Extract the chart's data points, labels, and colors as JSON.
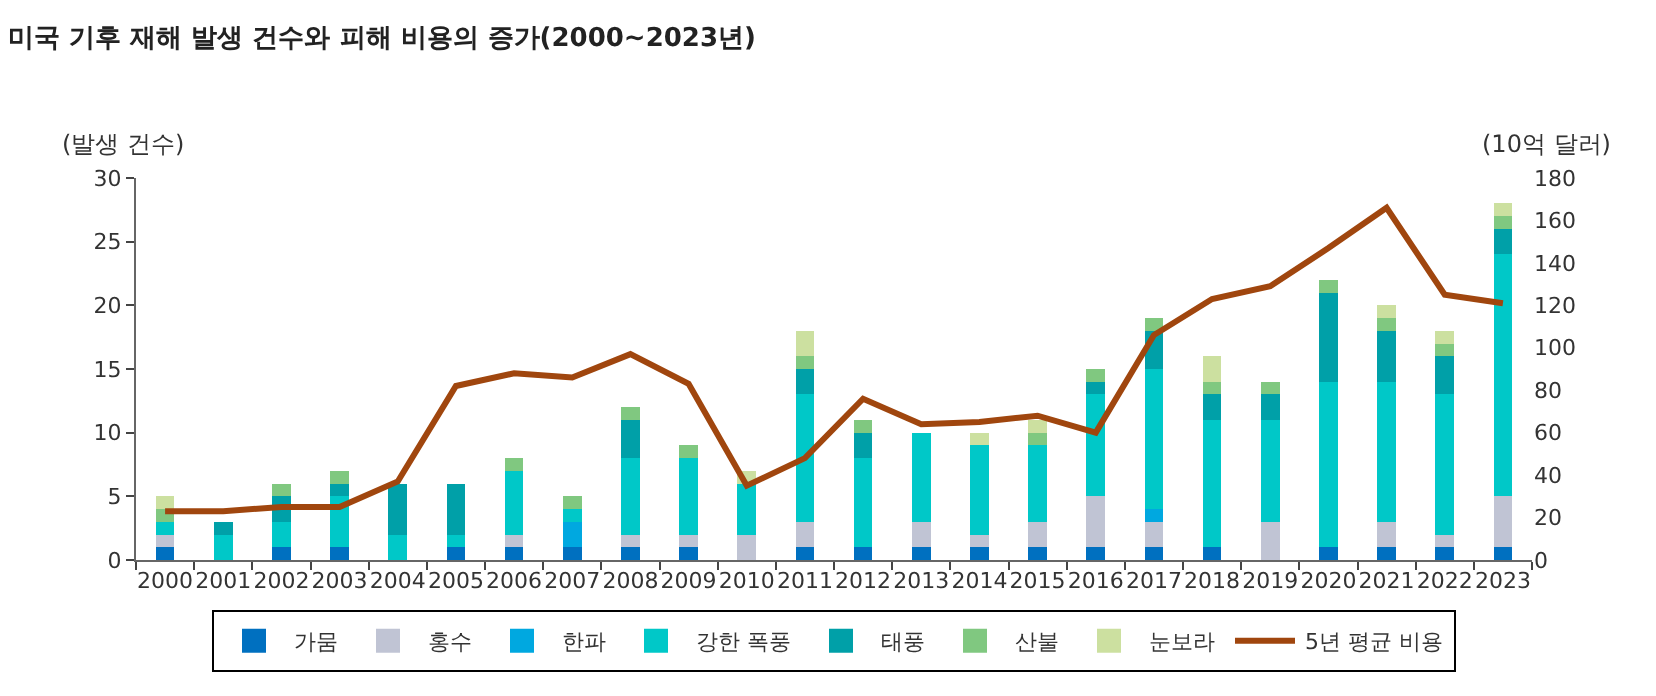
{
  "chart_data": {
    "type": "bar",
    "stacked": true,
    "title": "미국 기후 재해 발생 건수와 피해 비용의 증가(2000~2023년)",
    "ylabel": "(발생 건수)",
    "y2label": "(10억 달러)",
    "categories": [
      "2000",
      "2001",
      "2002",
      "2003",
      "2004",
      "2005",
      "2006",
      "2007",
      "2008",
      "2009",
      "2010",
      "2011",
      "2012",
      "2013",
      "2014",
      "2015",
      "2016",
      "2017",
      "2018",
      "2019",
      "2020",
      "2021",
      "2022",
      "2023"
    ],
    "ylim": [
      0,
      30
    ],
    "yticks": [
      0,
      5,
      10,
      15,
      20,
      25,
      30
    ],
    "y2lim": [
      0,
      180
    ],
    "y2ticks": [
      0,
      20,
      40,
      60,
      80,
      100,
      120,
      140,
      160,
      180
    ],
    "grid": false,
    "legend": "bottom",
    "series": [
      {
        "name": "가뭄",
        "color": "#0070c0",
        "values": [
          1,
          0,
          1,
          1,
          0,
          1,
          1,
          1,
          1,
          1,
          0,
          1,
          1,
          1,
          1,
          1,
          1,
          1,
          1,
          0,
          1,
          1,
          1,
          1
        ]
      },
      {
        "name": "홍수",
        "color": "#c0c4d4",
        "values": [
          1,
          0,
          0,
          0,
          0,
          0,
          1,
          0,
          1,
          1,
          2,
          2,
          0,
          2,
          1,
          2,
          4,
          2,
          0,
          3,
          0,
          2,
          1,
          4
        ]
      },
      {
        "name": "한파",
        "color": "#00a8e0",
        "values": [
          0,
          0,
          0,
          0,
          0,
          0,
          0,
          2,
          0,
          0,
          0,
          0,
          0,
          0,
          0,
          0,
          0,
          1,
          0,
          0,
          0,
          0,
          0,
          0
        ]
      },
      {
        "name": "강한 폭풍",
        "color": "#00c8c8",
        "values": [
          1,
          2,
          2,
          4,
          2,
          1,
          5,
          1,
          6,
          6,
          4,
          10,
          7,
          7,
          7,
          6,
          8,
          11,
          10,
          8,
          13,
          11,
          11,
          19
        ]
      },
      {
        "name": "태풍",
        "color": "#00a0a8",
        "values": [
          0,
          1,
          2,
          1,
          4,
          4,
          0,
          0,
          3,
          0,
          0,
          2,
          2,
          0,
          0,
          0,
          1,
          3,
          2,
          2,
          7,
          4,
          3,
          2
        ]
      },
      {
        "name": "산불",
        "color": "#80c880",
        "values": [
          1,
          0,
          1,
          1,
          0,
          0,
          1,
          1,
          1,
          1,
          0,
          1,
          1,
          0,
          0,
          1,
          1,
          1,
          1,
          1,
          1,
          1,
          1,
          1
        ]
      },
      {
        "name": "눈보라",
        "color": "#cce0a0",
        "values": [
          1,
          0,
          0,
          0,
          0,
          0,
          0,
          0,
          0,
          0,
          1,
          2,
          0,
          0,
          1,
          1,
          0,
          0,
          2,
          0,
          0,
          1,
          1,
          1
        ]
      },
      {
        "name": "5년 평균 비용",
        "type": "line",
        "axis": "y2",
        "color": "#a0460e",
        "marker": "none",
        "line_style": "solid",
        "values": [
          23,
          23,
          25,
          25,
          37,
          82,
          88,
          86,
          97,
          83,
          35,
          48,
          76,
          64,
          65,
          68,
          60,
          106,
          123,
          129,
          147,
          166,
          125,
          121
        ]
      }
    ]
  }
}
